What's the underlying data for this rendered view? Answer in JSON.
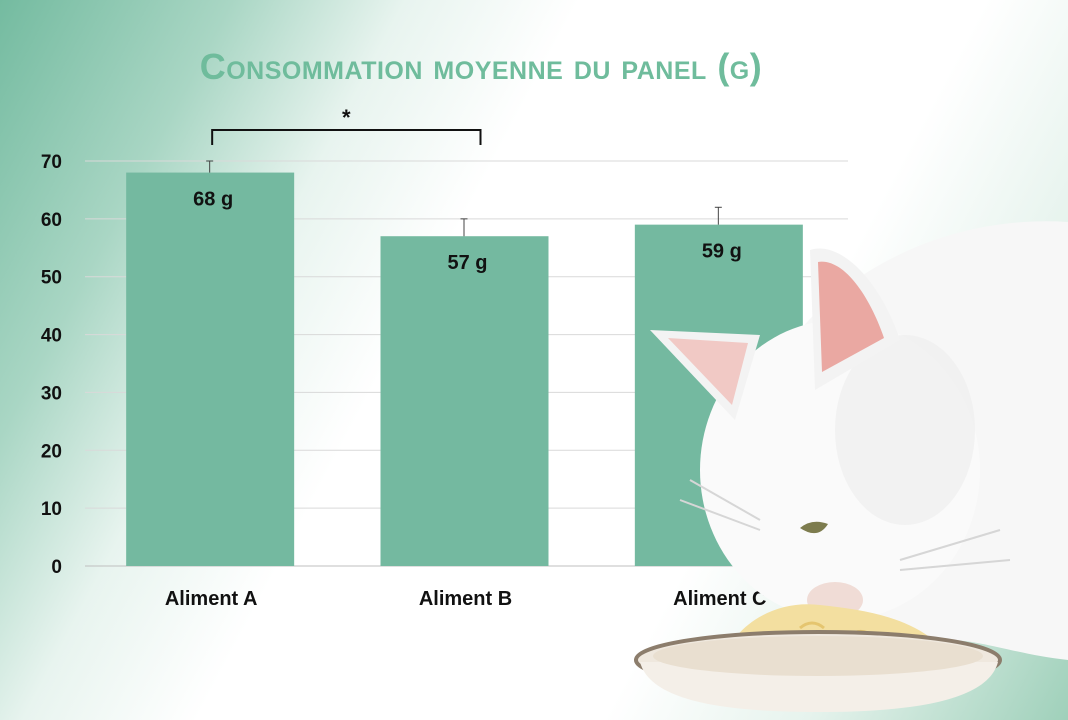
{
  "chart_data": {
    "type": "bar",
    "title": "Consommation moyenne du panel (g)",
    "categories": [
      "Aliment A",
      "Aliment B",
      "Aliment C"
    ],
    "values": [
      68,
      57,
      59
    ],
    "data_labels": [
      "68 g",
      "57 g",
      "59 g"
    ],
    "error_upper": [
      70,
      60,
      62
    ],
    "ylim": [
      0,
      70
    ],
    "yticks": [
      0,
      10,
      20,
      30,
      40,
      50,
      60,
      70
    ],
    "grid": true,
    "significance": {
      "from": "Aliment A",
      "to": "Aliment B",
      "label": "*"
    },
    "colors": {
      "bar": "#74b9a0",
      "title": "#6fbc9c",
      "grid": "#d9d9d9"
    }
  },
  "illustration": {
    "icon": "cat-eating-icon"
  }
}
